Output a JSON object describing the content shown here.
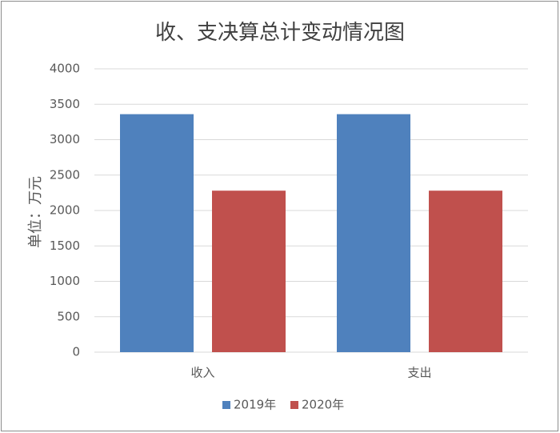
{
  "chart_data": {
    "type": "bar",
    "title": "收、支决算总计变动情况图",
    "y_label": "单位：万元",
    "categories": [
      "收入",
      "支出"
    ],
    "series": [
      {
        "name": "2019年",
        "color": "#4f81bd",
        "values": [
          3360,
          3360
        ]
      },
      {
        "name": "2020年",
        "color": "#c0504d",
        "values": [
          2280,
          2280
        ]
      }
    ],
    "ylim": [
      0,
      4000
    ],
    "yticks": [
      0,
      500,
      1000,
      1500,
      2000,
      2500,
      3000,
      3500,
      4000
    ],
    "grid": true,
    "legend": "bottom"
  }
}
